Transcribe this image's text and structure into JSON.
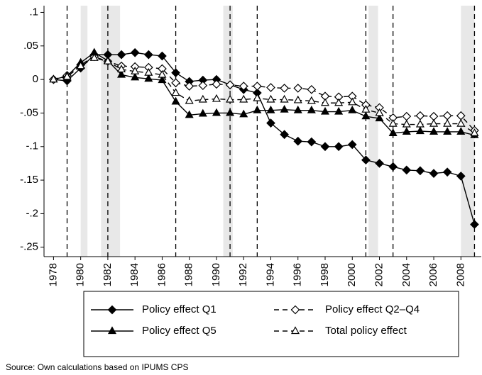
{
  "chart_data": {
    "type": "line",
    "x": [
      1978,
      1979,
      1980,
      1981,
      1982,
      1983,
      1984,
      1985,
      1986,
      1987,
      1988,
      1989,
      1990,
      1991,
      1992,
      1993,
      1994,
      1995,
      1996,
      1997,
      1998,
      1999,
      2000,
      2001,
      2002,
      2003,
      2004,
      2005,
      2006,
      2007,
      2008,
      2009
    ],
    "series": [
      {
        "name": "Policy effect Q1",
        "color": "#000000",
        "marker": "diamond",
        "filled": true,
        "dashed": false,
        "values": [
          0,
          -0.002,
          0.017,
          0.037,
          0.037,
          0.037,
          0.04,
          0.037,
          0.035,
          0.01,
          -0.003,
          -0.001,
          0.0,
          -0.008,
          -0.015,
          -0.02,
          -0.065,
          -0.082,
          -0.092,
          -0.093,
          -0.1,
          -0.1,
          -0.097,
          -0.12,
          -0.125,
          -0.13,
          -0.135,
          -0.136,
          -0.14,
          -0.138,
          -0.144,
          -0.216
        ]
      },
      {
        "name": "Policy effect Q2–Q4",
        "color": "#000000",
        "marker": "diamond",
        "filled": false,
        "dashed": true,
        "values": [
          0,
          0.006,
          0.022,
          0.034,
          0.027,
          0.02,
          0.019,
          0.018,
          0.016,
          -0.005,
          -0.01,
          -0.009,
          -0.007,
          -0.008,
          -0.01,
          -0.01,
          -0.012,
          -0.013,
          -0.013,
          -0.015,
          -0.025,
          -0.026,
          -0.025,
          -0.038,
          -0.042,
          -0.057,
          -0.055,
          -0.054,
          -0.055,
          -0.054,
          -0.054,
          -0.076
        ]
      },
      {
        "name": "Policy effect Q5",
        "color": "#000000",
        "marker": "triangle",
        "filled": true,
        "dashed": false,
        "values": [
          0,
          0.005,
          0.025,
          0.04,
          0.028,
          0.007,
          0.003,
          0.001,
          -0.001,
          -0.033,
          -0.053,
          -0.051,
          -0.05,
          -0.05,
          -0.052,
          -0.046,
          -0.046,
          -0.045,
          -0.046,
          -0.046,
          -0.048,
          -0.048,
          -0.046,
          -0.055,
          -0.058,
          -0.08,
          -0.078,
          -0.077,
          -0.078,
          -0.078,
          -0.078,
          -0.083
        ]
      },
      {
        "name": "Total policy effect",
        "color": "#000000",
        "marker": "triangle",
        "filled": false,
        "dashed": true,
        "values": [
          0,
          0.004,
          0.02,
          0.032,
          0.027,
          0.015,
          0.012,
          0.01,
          0.007,
          -0.02,
          -0.032,
          -0.03,
          -0.029,
          -0.03,
          -0.03,
          -0.028,
          -0.03,
          -0.03,
          -0.031,
          -0.032,
          -0.035,
          -0.035,
          -0.034,
          -0.045,
          -0.05,
          -0.066,
          -0.067,
          -0.067,
          -0.066,
          -0.066,
          -0.066,
          -0.08
        ]
      }
    ],
    "shaded_periods": [
      [
        1980,
        1980.5
      ],
      [
        1981.5,
        1982.9
      ],
      [
        1990.5,
        1991.2
      ],
      [
        2001.2,
        2001.9
      ],
      [
        2008,
        2009
      ]
    ],
    "shade_color": "#e8e8e8",
    "vlines": [
      1979,
      1982,
      1987,
      1991,
      1993,
      2001,
      2003,
      2009
    ],
    "xlim": [
      1977.3,
      2009.5
    ],
    "xticks": [
      1978,
      1980,
      1982,
      1984,
      1986,
      1988,
      1990,
      1992,
      1994,
      1996,
      1998,
      2000,
      2002,
      2004,
      2006,
      2008
    ],
    "ylim": [
      -0.264,
      0.11
    ],
    "yticks": [
      {
        "value": 0.1,
        "label": ".1"
      },
      {
        "value": 0.05,
        "label": ".05"
      },
      0,
      {
        "value": -0.05,
        "label": "-.05"
      },
      {
        "value": -0.1,
        "label": "-.1"
      },
      {
        "value": -0.15,
        "label": "-.15"
      },
      {
        "value": -0.2,
        "label": "-.2"
      },
      {
        "value": -0.25,
        "label": "-.25"
      }
    ],
    "note": "Source: Own calculations based on IPUMS CPS"
  }
}
